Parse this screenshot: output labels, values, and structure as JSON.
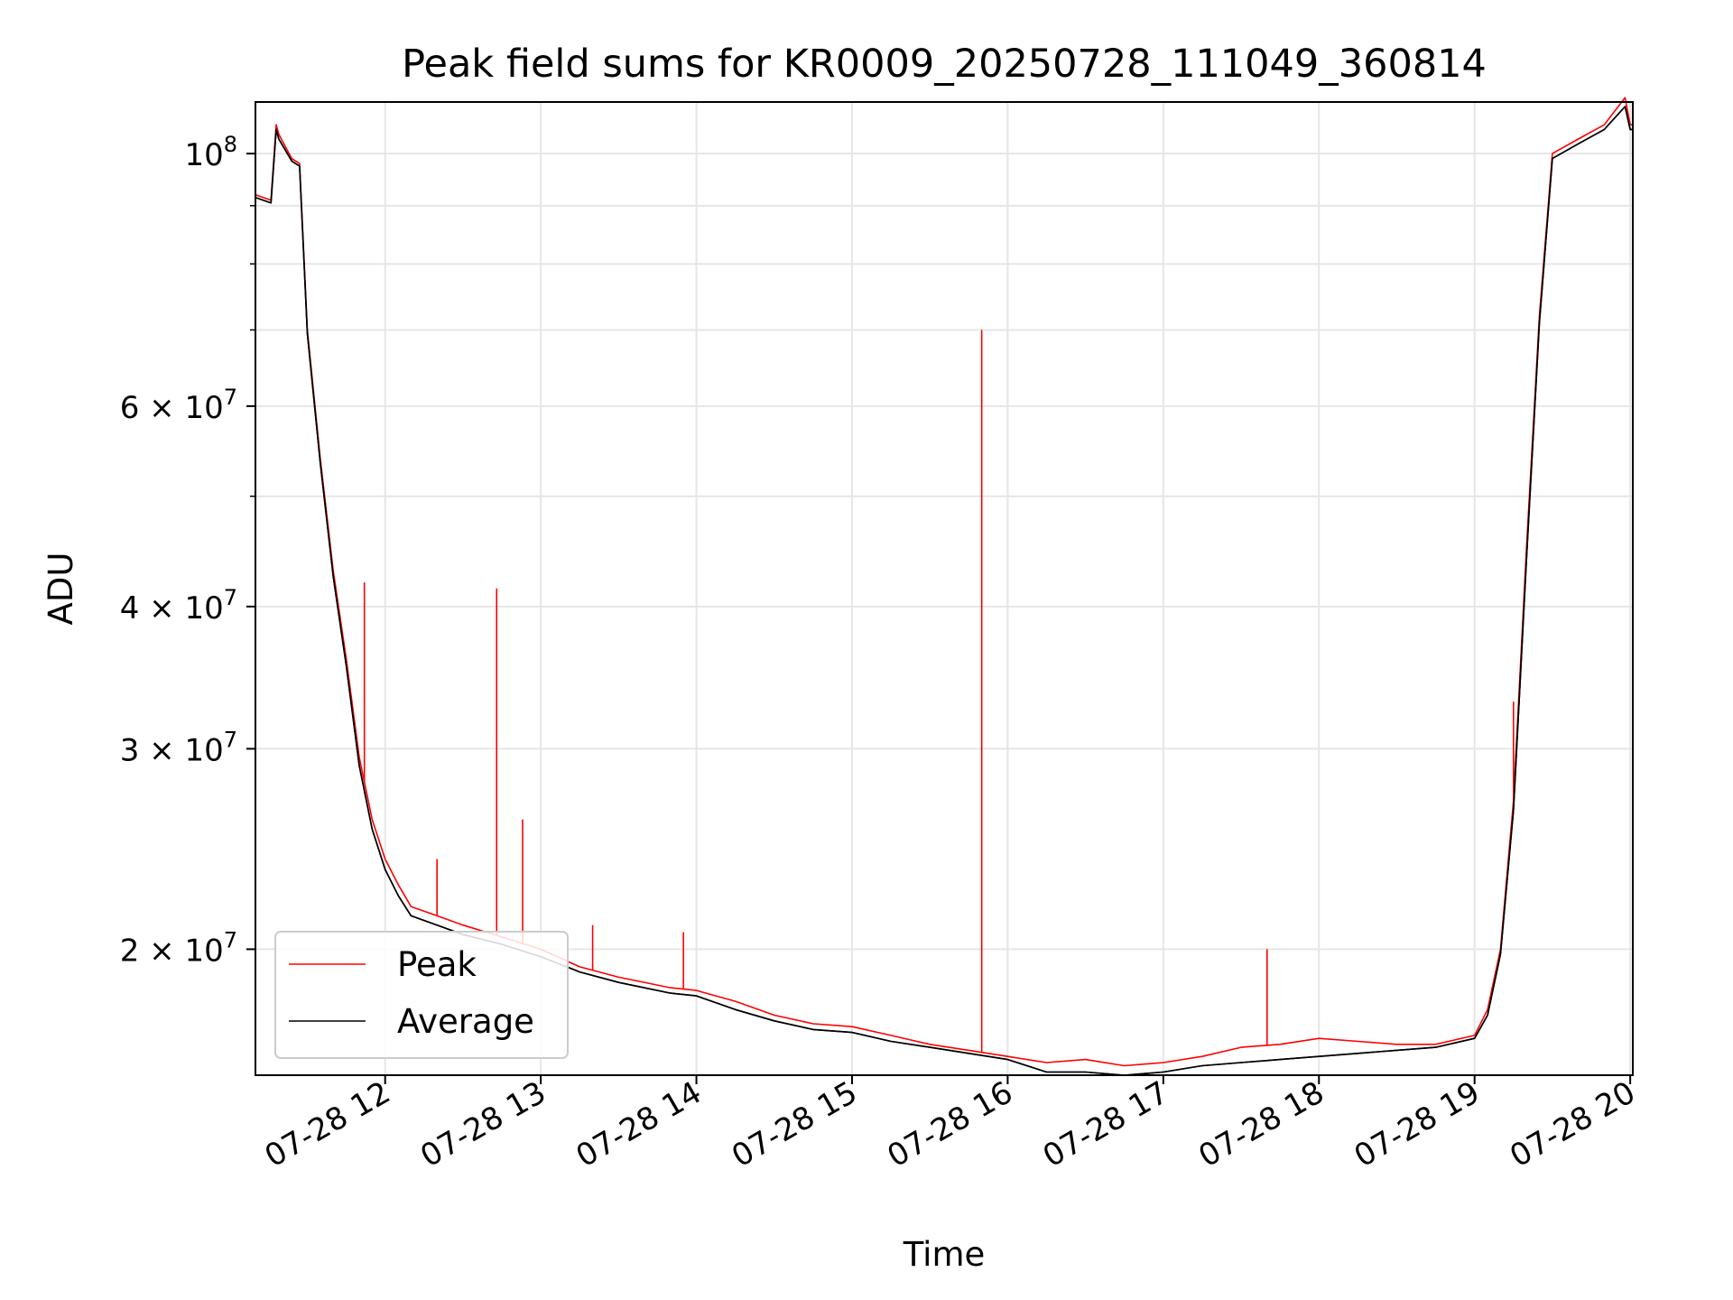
{
  "chart_data": {
    "type": "line",
    "title": "Peak field sums for KR0009_20250728_111049_360814",
    "xlabel": "Time",
    "ylabel": "ADU",
    "y_scale": "log",
    "grid": true,
    "legend_position": "lower-left",
    "xlim": [
      "07-28 11:10",
      "07-28 20:01"
    ],
    "ylim": [
      15500000,
      111000000
    ],
    "x_ticks": [
      {
        "time": "07-28 12:00",
        "label": "07-28 12"
      },
      {
        "time": "07-28 13:00",
        "label": "07-28 13"
      },
      {
        "time": "07-28 14:00",
        "label": "07-28 14"
      },
      {
        "time": "07-28 15:00",
        "label": "07-28 15"
      },
      {
        "time": "07-28 16:00",
        "label": "07-28 16"
      },
      {
        "time": "07-28 17:00",
        "label": "07-28 17"
      },
      {
        "time": "07-28 18:00",
        "label": "07-28 18"
      },
      {
        "time": "07-28 19:00",
        "label": "07-28 19"
      },
      {
        "time": "07-28 20:00",
        "label": "07-28 20"
      }
    ],
    "y_ticks": [
      {
        "value": 100000000,
        "base": "10",
        "exp": "8"
      },
      {
        "value": 60000000,
        "base": "6 × 10",
        "exp": "7"
      },
      {
        "value": 40000000,
        "base": "4 × 10",
        "exp": "7"
      },
      {
        "value": 30000000,
        "base": "3 × 10",
        "exp": "7"
      },
      {
        "value": 20000000,
        "base": "2 × 10",
        "exp": "7"
      }
    ],
    "y_minor_ticks": [
      50000000,
      70000000,
      80000000,
      90000000
    ],
    "series": [
      {
        "name": "Peak",
        "color": "#ff0000",
        "x": [
          "07-28 11:10",
          "07-28 11:16",
          "07-28 11:18",
          "07-28 11:19",
          "07-28 11:24",
          "07-28 11:27",
          "07-28 11:30",
          "07-28 11:35",
          "07-28 11:40",
          "07-28 11:45",
          "07-28 11:50",
          "07-28 11:55",
          "07-28 12:00",
          "07-28 12:05",
          "07-28 12:10",
          "07-28 12:20",
          "07-28 12:30",
          "07-28 12:45",
          "07-28 13:00",
          "07-28 13:15",
          "07-28 13:30",
          "07-28 13:50",
          "07-28 14:00",
          "07-28 14:15",
          "07-28 14:30",
          "07-28 14:45",
          "07-28 15:00",
          "07-28 15:15",
          "07-28 15:30",
          "07-28 15:45",
          "07-28 16:00",
          "07-28 16:15",
          "07-28 16:30",
          "07-28 16:45",
          "07-28 17:00",
          "07-28 17:15",
          "07-28 17:30",
          "07-28 17:45",
          "07-28 18:00",
          "07-28 18:15",
          "07-28 18:30",
          "07-28 18:45",
          "07-28 19:00",
          "07-28 19:05",
          "07-28 19:10",
          "07-28 19:15",
          "07-28 19:20",
          "07-28 19:25",
          "07-28 19:30",
          "07-28 19:40",
          "07-28 19:50",
          "07-28 19:58",
          "07-28 20:00",
          "07-28 20:01"
        ],
        "y": [
          92000000,
          91000000,
          106000000,
          104000000,
          99000000,
          98000000,
          70000000,
          54000000,
          43000000,
          36000000,
          29500000,
          26000000,
          24000000,
          22800000,
          21800000,
          21400000,
          21000000,
          20500000,
          20000000,
          19300000,
          18900000,
          18500000,
          18400000,
          18000000,
          17500000,
          17200000,
          17100000,
          16800000,
          16500000,
          16300000,
          16100000,
          15900000,
          16000000,
          15800000,
          15900000,
          16100000,
          16400000,
          16500000,
          16700000,
          16600000,
          16500000,
          16500000,
          16800000,
          17700000,
          20000000,
          27000000,
          45000000,
          72000000,
          100000000,
          103000000,
          106000000,
          112000000,
          106000000,
          106000000
        ],
        "spikes": [
          {
            "x": "07-28 11:52",
            "y": 42000000
          },
          {
            "x": "07-28 12:20",
            "y": 24000000
          },
          {
            "x": "07-28 12:43",
            "y": 41500000
          },
          {
            "x": "07-28 12:53",
            "y": 26000000
          },
          {
            "x": "07-28 13:20",
            "y": 21000000
          },
          {
            "x": "07-28 13:55",
            "y": 20700000
          },
          {
            "x": "07-28 15:50",
            "y": 70000000
          },
          {
            "x": "07-28 17:40",
            "y": 20000000
          },
          {
            "x": "07-28 19:15",
            "y": 33000000
          }
        ]
      },
      {
        "name": "Average",
        "color": "#000000",
        "x": [
          "07-28 11:10",
          "07-28 11:16",
          "07-28 11:18",
          "07-28 11:19",
          "07-28 11:24",
          "07-28 11:27",
          "07-28 11:30",
          "07-28 11:35",
          "07-28 11:40",
          "07-28 11:45",
          "07-28 11:50",
          "07-28 11:55",
          "07-28 12:00",
          "07-28 12:05",
          "07-28 12:10",
          "07-28 12:20",
          "07-28 12:30",
          "07-28 12:45",
          "07-28 13:00",
          "07-28 13:15",
          "07-28 13:30",
          "07-28 13:50",
          "07-28 14:00",
          "07-28 14:15",
          "07-28 14:30",
          "07-28 14:45",
          "07-28 15:00",
          "07-28 15:15",
          "07-28 15:30",
          "07-28 15:45",
          "07-28 16:00",
          "07-28 16:15",
          "07-28 16:30",
          "07-28 16:45",
          "07-28 17:00",
          "07-28 17:15",
          "07-28 17:30",
          "07-28 17:45",
          "07-28 18:00",
          "07-28 18:15",
          "07-28 18:30",
          "07-28 18:45",
          "07-28 19:00",
          "07-28 19:05",
          "07-28 19:10",
          "07-28 19:15",
          "07-28 19:20",
          "07-28 19:25",
          "07-28 19:30",
          "07-28 19:40",
          "07-28 19:50",
          "07-28 19:58",
          "07-28 20:00",
          "07-28 20:01"
        ],
        "y": [
          91500000,
          90500000,
          105000000,
          103000000,
          98500000,
          97500000,
          69500000,
          53500000,
          42500000,
          35500000,
          29000000,
          25500000,
          23500000,
          22300000,
          21400000,
          21000000,
          20600000,
          20200000,
          19700000,
          19100000,
          18700000,
          18300000,
          18200000,
          17700000,
          17300000,
          17000000,
          16900000,
          16600000,
          16400000,
          16200000,
          16000000,
          15600000,
          15600000,
          15500000,
          15600000,
          15800000,
          15900000,
          16000000,
          16100000,
          16200000,
          16300000,
          16400000,
          16700000,
          17500000,
          19800000,
          26500000,
          44000000,
          71000000,
          99000000,
          102000000,
          105000000,
          110000000,
          105000000,
          105000000
        ]
      }
    ]
  }
}
